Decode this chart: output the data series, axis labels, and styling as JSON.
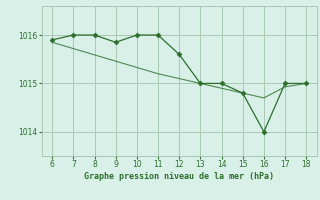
{
  "x": [
    6,
    7,
    8,
    9,
    10,
    11,
    12,
    13,
    14,
    15,
    16,
    17,
    18
  ],
  "y_main": [
    1015.9,
    1016.0,
    1016.0,
    1015.85,
    1016.0,
    1016.0,
    1015.6,
    1015.0,
    1015.0,
    1014.8,
    1014.0,
    1015.0,
    1015.0
  ],
  "y_trend": [
    1015.85,
    1015.72,
    1015.59,
    1015.46,
    1015.33,
    1015.2,
    1015.1,
    1015.0,
    1014.9,
    1014.8,
    1014.7,
    1014.93,
    1015.0
  ],
  "line_color": "#2d6e2d",
  "bg_color": "#d8f0e8",
  "grid_color": "#a8c8b4",
  "text_color": "#2d6e2d",
  "xlabel": "Graphe pression niveau de la mer (hPa)",
  "yticks": [
    1014,
    1015,
    1016
  ],
  "xticks": [
    6,
    7,
    8,
    9,
    10,
    11,
    12,
    13,
    14,
    15,
    16,
    17,
    18
  ],
  "xlim": [
    5.5,
    18.5
  ],
  "ylim": [
    1013.5,
    1016.6
  ]
}
